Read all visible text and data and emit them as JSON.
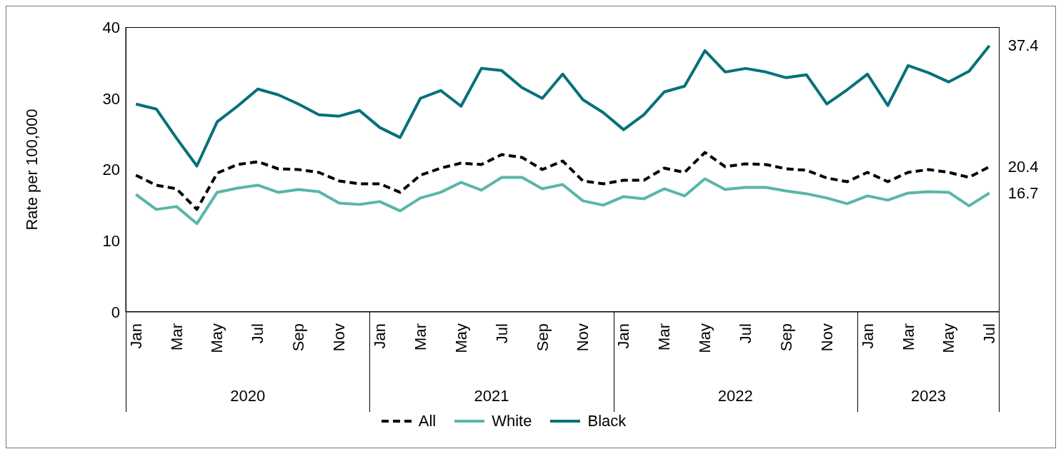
{
  "chart_data": {
    "type": "line",
    "ylabel": "Rate per 100,000",
    "ylim": [
      0,
      40
    ],
    "yticks": [
      0,
      10,
      20,
      30,
      40
    ],
    "grid": false,
    "legend": "bottom",
    "marker": "none",
    "categories": [
      "Jan",
      null,
      "Mar",
      null,
      "May",
      null,
      "Jul",
      null,
      "Sep",
      null,
      "Nov",
      null,
      "Jan",
      null,
      "Mar",
      null,
      "May",
      null,
      "Jul",
      null,
      "Sep",
      null,
      "Nov",
      null,
      "Jan",
      null,
      "Mar",
      null,
      "May",
      null,
      "Jul",
      null,
      "Sep",
      null,
      "Nov",
      null,
      "Jan",
      null,
      "Mar",
      null,
      "May",
      null,
      "Jul"
    ],
    "annotations": [
      "2020",
      "2021",
      "2022",
      "2023"
    ],
    "series": [
      {
        "name": "All",
        "color": "#000000",
        "line_style": "dashed",
        "values": [
          19.2,
          17.8,
          17.3,
          14.4,
          19.5,
          20.7,
          21.1,
          20.1,
          20.0,
          19.6,
          18.4,
          18.0,
          18.0,
          16.8,
          19.2,
          20.2,
          20.9,
          20.7,
          22.1,
          21.7,
          20.0,
          21.2,
          18.4,
          18.0,
          18.5,
          18.5,
          20.2,
          19.6,
          22.4,
          20.4,
          20.8,
          20.7,
          20.1,
          19.9,
          18.8,
          18.3,
          19.6,
          18.3,
          19.6,
          20.0,
          19.6,
          18.9,
          20.4
        ],
        "value_labels": [
          null,
          null,
          null,
          null,
          null,
          null,
          null,
          null,
          null,
          null,
          null,
          null,
          null,
          null,
          null,
          null,
          null,
          null,
          null,
          null,
          null,
          null,
          null,
          null,
          null,
          null,
          null,
          null,
          null,
          null,
          null,
          null,
          null,
          null,
          null,
          null,
          null,
          null,
          null,
          null,
          null,
          null,
          "20.4"
        ]
      },
      {
        "name": "White",
        "color": "#5ab5aa",
        "line_style": "solid",
        "values": [
          16.5,
          14.4,
          14.8,
          12.4,
          16.8,
          17.4,
          17.8,
          16.8,
          17.2,
          16.9,
          15.3,
          15.1,
          15.5,
          14.2,
          16.0,
          16.8,
          18.2,
          17.1,
          18.9,
          18.9,
          17.3,
          17.9,
          15.6,
          15.0,
          16.2,
          15.9,
          17.3,
          16.3,
          18.7,
          17.2,
          17.5,
          17.5,
          17.0,
          16.6,
          16.0,
          15.2,
          16.3,
          15.7,
          16.7,
          16.9,
          16.8,
          14.9,
          16.7
        ],
        "value_labels": [
          null,
          null,
          null,
          null,
          null,
          null,
          null,
          null,
          null,
          null,
          null,
          null,
          null,
          null,
          null,
          null,
          null,
          null,
          null,
          null,
          null,
          null,
          null,
          null,
          null,
          null,
          null,
          null,
          null,
          null,
          null,
          null,
          null,
          null,
          null,
          null,
          null,
          null,
          null,
          null,
          null,
          null,
          "16.7"
        ]
      },
      {
        "name": "Black",
        "color": "#05717a",
        "line_style": "solid",
        "values": [
          29.2,
          28.5,
          24.4,
          20.5,
          26.7,
          28.9,
          31.3,
          30.5,
          29.2,
          27.7,
          27.5,
          28.3,
          25.9,
          24.5,
          30.0,
          31.1,
          28.9,
          34.2,
          33.9,
          31.5,
          30.0,
          33.4,
          29.8,
          28.0,
          25.6,
          27.7,
          30.9,
          31.7,
          36.7,
          33.7,
          34.2,
          33.7,
          32.9,
          33.3,
          29.2,
          31.2,
          33.4,
          29.0,
          34.6,
          33.6,
          32.3,
          33.8,
          37.4
        ],
        "value_labels": [
          null,
          null,
          null,
          null,
          null,
          null,
          null,
          null,
          null,
          null,
          null,
          null,
          null,
          null,
          null,
          null,
          null,
          null,
          null,
          null,
          null,
          null,
          null,
          null,
          null,
          null,
          null,
          null,
          null,
          null,
          null,
          null,
          null,
          null,
          null,
          null,
          null,
          null,
          null,
          null,
          null,
          null,
          "37.4"
        ]
      }
    ]
  }
}
